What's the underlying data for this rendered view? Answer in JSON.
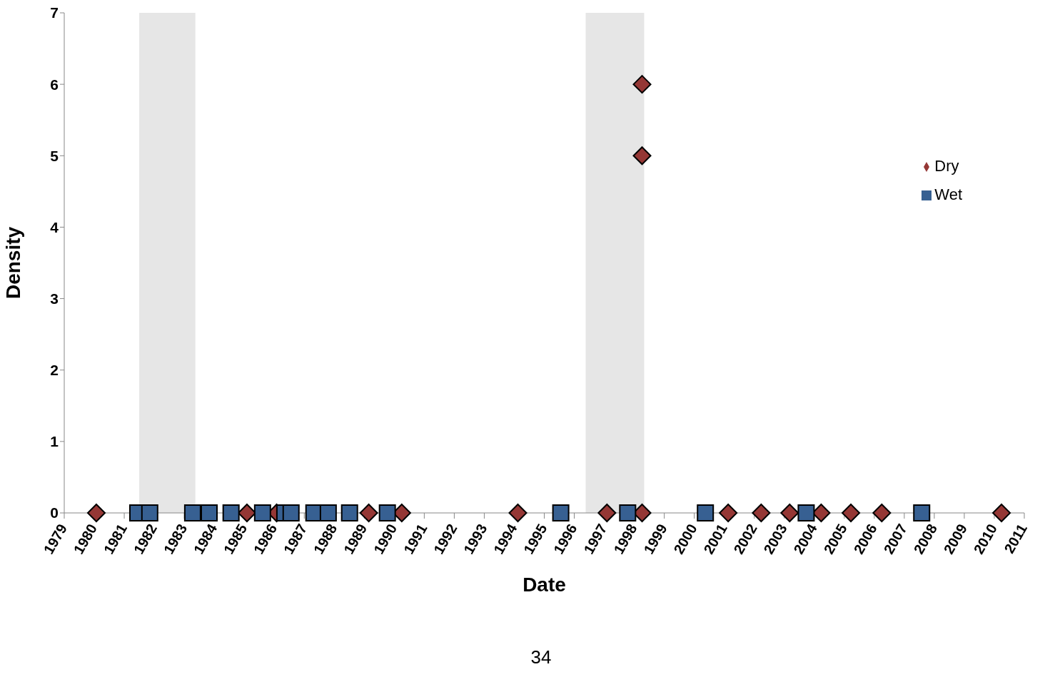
{
  "chart_data": {
    "type": "scatter",
    "xlabel": "Date",
    "ylabel": "Density",
    "xlim": [
      1979,
      2011
    ],
    "xticks": [
      1979,
      1980,
      1981,
      1982,
      1983,
      1984,
      1985,
      1986,
      1987,
      1988,
      1989,
      1990,
      1991,
      1992,
      1993,
      1994,
      1995,
      1996,
      1997,
      1998,
      1999,
      2000,
      2001,
      2002,
      2003,
      2004,
      2005,
      2006,
      2007,
      2008,
      2009,
      2010,
      2011
    ],
    "ylim": [
      0,
      7
    ],
    "yticks": [
      0,
      1,
      2,
      3,
      4,
      5,
      6,
      7
    ],
    "grid": false,
    "legend": "top right",
    "bands": [
      {
        "axis": "x",
        "from": 1981.5,
        "to": 1983.37,
        "color": "#e6e6e6"
      },
      {
        "axis": "x",
        "from": 1996.38,
        "to": 1998.33,
        "color": "#e6e6e6"
      }
    ],
    "series": [
      {
        "name": "Dry",
        "color": "#953735",
        "marker": "diamond",
        "x": [
          1980.07,
          1985.09,
          1986.08,
          1989.15,
          1990.25,
          1994.12,
          1997.09,
          1998.26,
          1998.26,
          1998.26,
          2001.13,
          2002.23,
          2003.18,
          2004.23,
          2005.22,
          2006.25,
          2010.24
        ],
        "values": [
          0,
          0,
          0,
          0,
          0,
          0,
          0,
          0,
          5,
          6,
          0,
          0,
          0,
          0,
          0,
          0,
          0
        ]
      },
      {
        "name": "Wet",
        "color": "#376092",
        "marker": "square",
        "x": [
          1981.45,
          1981.85,
          1983.28,
          1983.83,
          1984.56,
          1985.61,
          1986.35,
          1986.56,
          1987.32,
          1987.8,
          1988.51,
          1989.77,
          1995.55,
          1997.78,
          2000.37,
          2003.73,
          2007.58
        ],
        "values": [
          0,
          0,
          0,
          0,
          0,
          0,
          0,
          0,
          0,
          0,
          0,
          0,
          0,
          0,
          0,
          0,
          0
        ]
      }
    ],
    "annotations": [
      "34"
    ]
  }
}
